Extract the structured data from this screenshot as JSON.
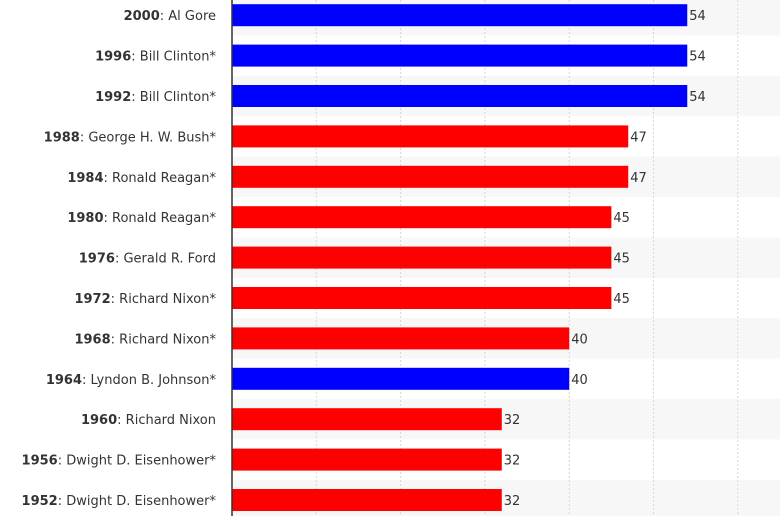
{
  "chart_data": {
    "type": "bar",
    "orientation": "horizontal",
    "categories": [
      {
        "year": "2000",
        "name": "Al Gore"
      },
      {
        "year": "1996",
        "name": "Bill Clinton*"
      },
      {
        "year": "1992",
        "name": "Bill Clinton*"
      },
      {
        "year": "1988",
        "name": "George H. W. Bush*"
      },
      {
        "year": "1984",
        "name": "Ronald Reagan*"
      },
      {
        "year": "1980",
        "name": "Ronald Reagan*"
      },
      {
        "year": "1976",
        "name": "Gerald R. Ford"
      },
      {
        "year": "1972",
        "name": "Richard Nixon*"
      },
      {
        "year": "1968",
        "name": "Richard Nixon*"
      },
      {
        "year": "1964",
        "name": "Lyndon B. Johnson*"
      },
      {
        "year": "1960",
        "name": "Richard Nixon"
      },
      {
        "year": "1956",
        "name": "Dwight D. Eisenhower*"
      },
      {
        "year": "1952",
        "name": "Dwight D. Eisenhower*"
      }
    ],
    "values": [
      54,
      54,
      54,
      47,
      47,
      45,
      45,
      45,
      40,
      40,
      32,
      32,
      32
    ],
    "bar_colors": [
      "#0000ff",
      "#0000ff",
      "#0000ff",
      "#ff0000",
      "#ff0000",
      "#ff0000",
      "#ff0000",
      "#ff0000",
      "#ff0000",
      "#0000ff",
      "#ff0000",
      "#ff0000",
      "#ff0000"
    ],
    "title": "",
    "xlabel": "",
    "ylabel": "",
    "xlim": [
      0,
      65
    ],
    "grid": true
  }
}
